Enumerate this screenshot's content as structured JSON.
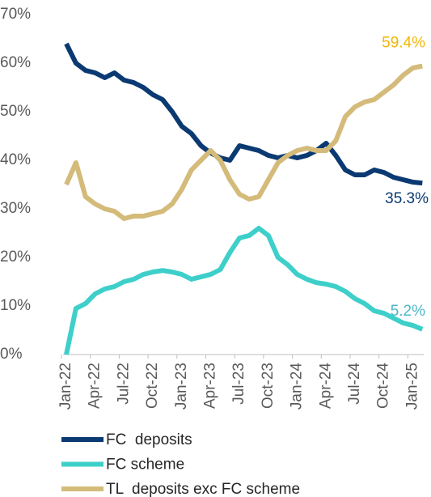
{
  "chart_data": {
    "type": "line",
    "categories": [
      "Jan-22",
      null,
      null,
      "Apr-22",
      null,
      null,
      "Jul-22",
      null,
      null,
      "Oct-22",
      null,
      null,
      "Jan-23",
      null,
      null,
      "Apr-23",
      null,
      null,
      "Jul-23",
      null,
      null,
      "Oct-23",
      null,
      null,
      "Jan-24",
      null,
      null,
      "Apr-24",
      null,
      null,
      "Jul-24",
      null,
      null,
      "Oct-24",
      null,
      null,
      "Jan-25",
      null
    ],
    "series": [
      {
        "name": "FC  deposits",
        "color": "#0b3a72",
        "label_color": "#0b3a72",
        "values": [
          64,
          60,
          58.5,
          58,
          57,
          58,
          56.5,
          56,
          55,
          53.5,
          52.5,
          50,
          47,
          45.5,
          43,
          41.5,
          40.5,
          40,
          43,
          42.5,
          42,
          41,
          40.5,
          41,
          40.5,
          41,
          42,
          43.5,
          41,
          38,
          37,
          37,
          38,
          37.5,
          36.5,
          36,
          35.5,
          35.3
        ],
        "value_labels": [
          null,
          null,
          null,
          null,
          null,
          null,
          null,
          null,
          null,
          null,
          null,
          null,
          null,
          null,
          null,
          null,
          null,
          null,
          null,
          null,
          null,
          null,
          null,
          null,
          null,
          null,
          null,
          null,
          null,
          null,
          null,
          null,
          null,
          null,
          null,
          null,
          null,
          "35.3%"
        ]
      },
      {
        "name": "FC scheme",
        "color": "#3ecfca",
        "label_color": "#4bb8c8",
        "values": [
          0,
          9.5,
          10.5,
          12.5,
          13.5,
          14,
          15,
          15.5,
          16.5,
          17,
          17.3,
          17,
          16.5,
          15.5,
          16,
          16.5,
          17.5,
          21,
          24,
          24.5,
          26,
          24.5,
          20,
          18.5,
          16.5,
          15.5,
          14.8,
          14.5,
          14,
          13,
          11.5,
          10.5,
          9,
          8.5,
          7.5,
          6.5,
          6,
          5.2
        ],
        "value_labels": [
          null,
          null,
          null,
          null,
          null,
          null,
          null,
          null,
          null,
          null,
          null,
          null,
          null,
          null,
          null,
          null,
          null,
          null,
          null,
          null,
          null,
          null,
          null,
          null,
          null,
          null,
          null,
          null,
          null,
          null,
          null,
          null,
          null,
          null,
          null,
          null,
          null,
          "5.2%"
        ]
      },
      {
        "name": "TL  deposits exc FC scheme",
        "color": "#d4bb7a",
        "label_color": "#f2b705",
        "values": [
          35,
          39.5,
          32.5,
          31,
          30,
          29.5,
          28,
          28.5,
          28.5,
          29,
          29.5,
          31,
          34,
          38,
          40,
          42,
          40,
          36,
          33,
          32,
          32.5,
          36,
          39.5,
          41,
          42,
          42.5,
          42,
          42,
          44,
          49,
          51,
          52,
          52.5,
          54,
          55.5,
          57.5,
          59,
          59.4
        ],
        "value_labels": [
          null,
          null,
          null,
          null,
          null,
          null,
          null,
          null,
          null,
          null,
          null,
          null,
          null,
          null,
          null,
          null,
          null,
          null,
          null,
          null,
          null,
          null,
          null,
          null,
          null,
          null,
          null,
          null,
          null,
          null,
          null,
          null,
          null,
          null,
          null,
          null,
          null,
          "59.4%"
        ]
      }
    ],
    "ylim": [
      0,
      70
    ],
    "yticks": [
      {
        "value": 0,
        "label": "0%"
      },
      {
        "value": 10,
        "label": "10%"
      },
      {
        "value": 20,
        "label": "20%"
      },
      {
        "value": 30,
        "label": "30%"
      },
      {
        "value": 40,
        "label": "40%"
      },
      {
        "value": 50,
        "label": "50%"
      },
      {
        "value": 60,
        "label": "60%"
      },
      {
        "value": 70,
        "label": "70%"
      }
    ],
    "grid": false,
    "legend": "bottom"
  }
}
